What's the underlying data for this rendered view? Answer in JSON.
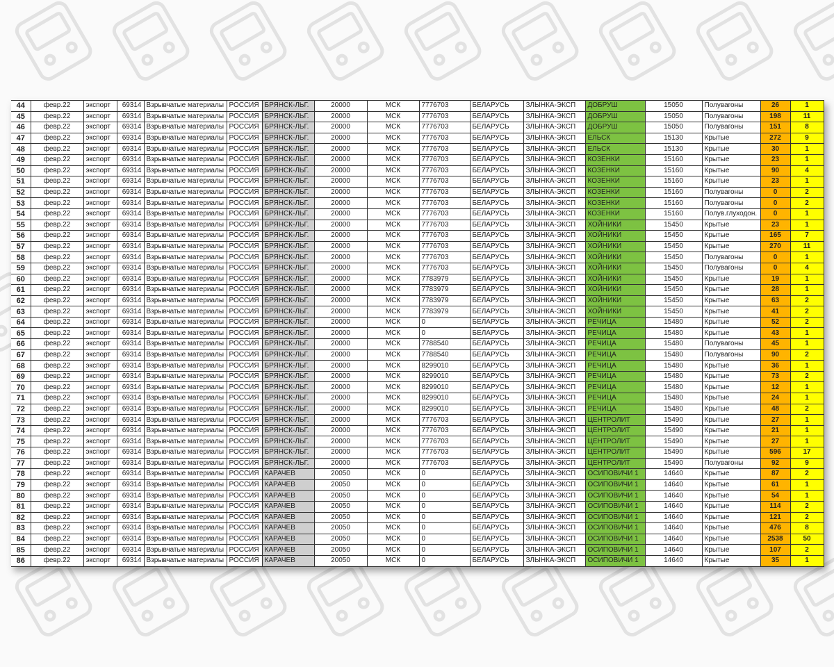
{
  "colors": {
    "station_origin": "#cfcfcf",
    "station_dest": "#7dc242",
    "tons": "#ffb400",
    "wagons": "#ffff00"
  },
  "watermark_icon": "train-icon",
  "rows": [
    [
      "44",
      "февр.22",
      "экспорт",
      "69314",
      "Взрывчатые материалы",
      "РОССИЯ",
      "БРЯНСК-ЛЬГ.",
      "20000",
      "МСК",
      "7776703",
      "БЕЛАРУСЬ",
      "ЗЛЫНКА-ЭКСП",
      "ДОБРУШ",
      "15050",
      "Полувагоны",
      "26",
      "1"
    ],
    [
      "45",
      "февр.22",
      "экспорт",
      "69314",
      "Взрывчатые материалы",
      "РОССИЯ",
      "БРЯНСК-ЛЬГ.",
      "20000",
      "МСК",
      "7776703",
      "БЕЛАРУСЬ",
      "ЗЛЫНКА-ЭКСП",
      "ДОБРУШ",
      "15050",
      "Полувагоны",
      "198",
      "11"
    ],
    [
      "46",
      "февр.22",
      "экспорт",
      "69314",
      "Взрывчатые материалы",
      "РОССИЯ",
      "БРЯНСК-ЛЬГ.",
      "20000",
      "МСК",
      "7776703",
      "БЕЛАРУСЬ",
      "ЗЛЫНКА-ЭКСП",
      "ДОБРУШ",
      "15050",
      "Полувагоны",
      "151",
      "8"
    ],
    [
      "47",
      "февр.22",
      "экспорт",
      "69314",
      "Взрывчатые материалы",
      "РОССИЯ",
      "БРЯНСК-ЛЬГ.",
      "20000",
      "МСК",
      "7776703",
      "БЕЛАРУСЬ",
      "ЗЛЫНКА-ЭКСП",
      "ЕЛЬСК",
      "15130",
      "Крытые",
      "272",
      "9"
    ],
    [
      "48",
      "февр.22",
      "экспорт",
      "69314",
      "Взрывчатые материалы",
      "РОССИЯ",
      "БРЯНСК-ЛЬГ.",
      "20000",
      "МСК",
      "7776703",
      "БЕЛАРУСЬ",
      "ЗЛЫНКА-ЭКСП",
      "ЕЛЬСК",
      "15130",
      "Крытые",
      "30",
      "1"
    ],
    [
      "49",
      "февр.22",
      "экспорт",
      "69314",
      "Взрывчатые материалы",
      "РОССИЯ",
      "БРЯНСК-ЛЬГ.",
      "20000",
      "МСК",
      "7776703",
      "БЕЛАРУСЬ",
      "ЗЛЫНКА-ЭКСП",
      "КОЗЕНКИ",
      "15160",
      "Крытые",
      "23",
      "1"
    ],
    [
      "50",
      "февр.22",
      "экспорт",
      "69314",
      "Взрывчатые материалы",
      "РОССИЯ",
      "БРЯНСК-ЛЬГ.",
      "20000",
      "МСК",
      "7776703",
      "БЕЛАРУСЬ",
      "ЗЛЫНКА-ЭКСП",
      "КОЗЕНКИ",
      "15160",
      "Крытые",
      "90",
      "4"
    ],
    [
      "51",
      "февр.22",
      "экспорт",
      "69314",
      "Взрывчатые материалы",
      "РОССИЯ",
      "БРЯНСК-ЛЬГ.",
      "20000",
      "МСК",
      "7776703",
      "БЕЛАРУСЬ",
      "ЗЛЫНКА-ЭКСП",
      "КОЗЕНКИ",
      "15160",
      "Крытые",
      "23",
      "1"
    ],
    [
      "52",
      "февр.22",
      "экспорт",
      "69314",
      "Взрывчатые материалы",
      "РОССИЯ",
      "БРЯНСК-ЛЬГ.",
      "20000",
      "МСК",
      "7776703",
      "БЕЛАРУСЬ",
      "ЗЛЫНКА-ЭКСП",
      "КОЗЕНКИ",
      "15160",
      "Полувагоны",
      "0",
      "2"
    ],
    [
      "53",
      "февр.22",
      "экспорт",
      "69314",
      "Взрывчатые материалы",
      "РОССИЯ",
      "БРЯНСК-ЛЬГ.",
      "20000",
      "МСК",
      "7776703",
      "БЕЛАРУСЬ",
      "ЗЛЫНКА-ЭКСП",
      "КОЗЕНКИ",
      "15160",
      "Полувагоны",
      "0",
      "2"
    ],
    [
      "54",
      "февр.22",
      "экспорт",
      "69314",
      "Взрывчатые материалы",
      "РОССИЯ",
      "БРЯНСК-ЛЬГ.",
      "20000",
      "МСК",
      "7776703",
      "БЕЛАРУСЬ",
      "ЗЛЫНКА-ЭКСП",
      "КОЗЕНКИ",
      "15160",
      "Полув.глуходон.",
      "0",
      "1"
    ],
    [
      "55",
      "февр.22",
      "экспорт",
      "69314",
      "Взрывчатые материалы",
      "РОССИЯ",
      "БРЯНСК-ЛЬГ.",
      "20000",
      "МСК",
      "7776703",
      "БЕЛАРУСЬ",
      "ЗЛЫНКА-ЭКСП",
      "ХОЙНИКИ",
      "15450",
      "Крытые",
      "23",
      "1"
    ],
    [
      "56",
      "февр.22",
      "экспорт",
      "69314",
      "Взрывчатые материалы",
      "РОССИЯ",
      "БРЯНСК-ЛЬГ.",
      "20000",
      "МСК",
      "7776703",
      "БЕЛАРУСЬ",
      "ЗЛЫНКА-ЭКСП",
      "ХОЙНИКИ",
      "15450",
      "Крытые",
      "165",
      "7"
    ],
    [
      "57",
      "февр.22",
      "экспорт",
      "69314",
      "Взрывчатые материалы",
      "РОССИЯ",
      "БРЯНСК-ЛЬГ.",
      "20000",
      "МСК",
      "7776703",
      "БЕЛАРУСЬ",
      "ЗЛЫНКА-ЭКСП",
      "ХОЙНИКИ",
      "15450",
      "Крытые",
      "270",
      "11"
    ],
    [
      "58",
      "февр.22",
      "экспорт",
      "69314",
      "Взрывчатые материалы",
      "РОССИЯ",
      "БРЯНСК-ЛЬГ.",
      "20000",
      "МСК",
      "7776703",
      "БЕЛАРУСЬ",
      "ЗЛЫНКА-ЭКСП",
      "ХОЙНИКИ",
      "15450",
      "Полувагоны",
      "0",
      "1"
    ],
    [
      "59",
      "февр.22",
      "экспорт",
      "69314",
      "Взрывчатые материалы",
      "РОССИЯ",
      "БРЯНСК-ЛЬГ.",
      "20000",
      "МСК",
      "7776703",
      "БЕЛАРУСЬ",
      "ЗЛЫНКА-ЭКСП",
      "ХОЙНИКИ",
      "15450",
      "Полувагоны",
      "0",
      "4"
    ],
    [
      "60",
      "февр.22",
      "экспорт",
      "69314",
      "Взрывчатые материалы",
      "РОССИЯ",
      "БРЯНСК-ЛЬГ.",
      "20000",
      "МСК",
      "7783979",
      "БЕЛАРУСЬ",
      "ЗЛЫНКА-ЭКСП",
      "ХОЙНИКИ",
      "15450",
      "Крытые",
      "19",
      "1"
    ],
    [
      "61",
      "февр.22",
      "экспорт",
      "69314",
      "Взрывчатые материалы",
      "РОССИЯ",
      "БРЯНСК-ЛЬГ.",
      "20000",
      "МСК",
      "7783979",
      "БЕЛАРУСЬ",
      "ЗЛЫНКА-ЭКСП",
      "ХОЙНИКИ",
      "15450",
      "Крытые",
      "28",
      "1"
    ],
    [
      "62",
      "февр.22",
      "экспорт",
      "69314",
      "Взрывчатые материалы",
      "РОССИЯ",
      "БРЯНСК-ЛЬГ.",
      "20000",
      "МСК",
      "7783979",
      "БЕЛАРУСЬ",
      "ЗЛЫНКА-ЭКСП",
      "ХОЙНИКИ",
      "15450",
      "Крытые",
      "63",
      "2"
    ],
    [
      "63",
      "февр.22",
      "экспорт",
      "69314",
      "Взрывчатые материалы",
      "РОССИЯ",
      "БРЯНСК-ЛЬГ.",
      "20000",
      "МСК",
      "7783979",
      "БЕЛАРУСЬ",
      "ЗЛЫНКА-ЭКСП",
      "ХОЙНИКИ",
      "15450",
      "Крытые",
      "41",
      "2"
    ],
    [
      "64",
      "февр.22",
      "экспорт",
      "69314",
      "Взрывчатые материалы",
      "РОССИЯ",
      "БРЯНСК-ЛЬГ.",
      "20000",
      "МСК",
      "0",
      "БЕЛАРУСЬ",
      "ЗЛЫНКА-ЭКСП",
      "РЕЧИЦА",
      "15480",
      "Крытые",
      "52",
      "2"
    ],
    [
      "65",
      "февр.22",
      "экспорт",
      "69314",
      "Взрывчатые материалы",
      "РОССИЯ",
      "БРЯНСК-ЛЬГ.",
      "20000",
      "МСК",
      "0",
      "БЕЛАРУСЬ",
      "ЗЛЫНКА-ЭКСП",
      "РЕЧИЦА",
      "15480",
      "Крытые",
      "43",
      "1"
    ],
    [
      "66",
      "февр.22",
      "экспорт",
      "69314",
      "Взрывчатые материалы",
      "РОССИЯ",
      "БРЯНСК-ЛЬГ.",
      "20000",
      "МСК",
      "7788540",
      "БЕЛАРУСЬ",
      "ЗЛЫНКА-ЭКСП",
      "РЕЧИЦА",
      "15480",
      "Полувагоны",
      "45",
      "1"
    ],
    [
      "67",
      "февр.22",
      "экспорт",
      "69314",
      "Взрывчатые материалы",
      "РОССИЯ",
      "БРЯНСК-ЛЬГ.",
      "20000",
      "МСК",
      "7788540",
      "БЕЛАРУСЬ",
      "ЗЛЫНКА-ЭКСП",
      "РЕЧИЦА",
      "15480",
      "Полувагоны",
      "90",
      "2"
    ],
    [
      "68",
      "февр.22",
      "экспорт",
      "69314",
      "Взрывчатые материалы",
      "РОССИЯ",
      "БРЯНСК-ЛЬГ.",
      "20000",
      "МСК",
      "8299010",
      "БЕЛАРУСЬ",
      "ЗЛЫНКА-ЭКСП",
      "РЕЧИЦА",
      "15480",
      "Крытые",
      "36",
      "1"
    ],
    [
      "69",
      "февр.22",
      "экспорт",
      "69314",
      "Взрывчатые материалы",
      "РОССИЯ",
      "БРЯНСК-ЛЬГ.",
      "20000",
      "МСК",
      "8299010",
      "БЕЛАРУСЬ",
      "ЗЛЫНКА-ЭКСП",
      "РЕЧИЦА",
      "15480",
      "Крытые",
      "73",
      "2"
    ],
    [
      "70",
      "февр.22",
      "экспорт",
      "69314",
      "Взрывчатые материалы",
      "РОССИЯ",
      "БРЯНСК-ЛЬГ.",
      "20000",
      "МСК",
      "8299010",
      "БЕЛАРУСЬ",
      "ЗЛЫНКА-ЭКСП",
      "РЕЧИЦА",
      "15480",
      "Крытые",
      "12",
      "1"
    ],
    [
      "71",
      "февр.22",
      "экспорт",
      "69314",
      "Взрывчатые материалы",
      "РОССИЯ",
      "БРЯНСК-ЛЬГ.",
      "20000",
      "МСК",
      "8299010",
      "БЕЛАРУСЬ",
      "ЗЛЫНКА-ЭКСП",
      "РЕЧИЦА",
      "15480",
      "Крытые",
      "24",
      "1"
    ],
    [
      "72",
      "февр.22",
      "экспорт",
      "69314",
      "Взрывчатые материалы",
      "РОССИЯ",
      "БРЯНСК-ЛЬГ.",
      "20000",
      "МСК",
      "8299010",
      "БЕЛАРУСЬ",
      "ЗЛЫНКА-ЭКСП",
      "РЕЧИЦА",
      "15480",
      "Крытые",
      "48",
      "2"
    ],
    [
      "73",
      "февр.22",
      "экспорт",
      "69314",
      "Взрывчатые материалы",
      "РОССИЯ",
      "БРЯНСК-ЛЬГ.",
      "20000",
      "МСК",
      "7776703",
      "БЕЛАРУСЬ",
      "ЗЛЫНКА-ЭКСП",
      "ЦЕНТРОЛИТ",
      "15490",
      "Крытые",
      "27",
      "1"
    ],
    [
      "74",
      "февр.22",
      "экспорт",
      "69314",
      "Взрывчатые материалы",
      "РОССИЯ",
      "БРЯНСК-ЛЬГ.",
      "20000",
      "МСК",
      "7776703",
      "БЕЛАРУСЬ",
      "ЗЛЫНКА-ЭКСП",
      "ЦЕНТРОЛИТ",
      "15490",
      "Крытые",
      "21",
      "1"
    ],
    [
      "75",
      "февр.22",
      "экспорт",
      "69314",
      "Взрывчатые материалы",
      "РОССИЯ",
      "БРЯНСК-ЛЬГ.",
      "20000",
      "МСК",
      "7776703",
      "БЕЛАРУСЬ",
      "ЗЛЫНКА-ЭКСП",
      "ЦЕНТРОЛИТ",
      "15490",
      "Крытые",
      "27",
      "1"
    ],
    [
      "76",
      "февр.22",
      "экспорт",
      "69314",
      "Взрывчатые материалы",
      "РОССИЯ",
      "БРЯНСК-ЛЬГ.",
      "20000",
      "МСК",
      "7776703",
      "БЕЛАРУСЬ",
      "ЗЛЫНКА-ЭКСП",
      "ЦЕНТРОЛИТ",
      "15490",
      "Крытые",
      "596",
      "17"
    ],
    [
      "77",
      "февр.22",
      "экспорт",
      "69314",
      "Взрывчатые материалы",
      "РОССИЯ",
      "БРЯНСК-ЛЬГ.",
      "20000",
      "МСК",
      "7776703",
      "БЕЛАРУСЬ",
      "ЗЛЫНКА-ЭКСП",
      "ЦЕНТРОЛИТ",
      "15490",
      "Полувагоны",
      "92",
      "9"
    ],
    [
      "78",
      "февр.22",
      "экспорт",
      "69314",
      "Взрывчатые материалы",
      "РОССИЯ",
      "КАРАЧЕВ",
      "20050",
      "МСК",
      "0",
      "БЕЛАРУСЬ",
      "ЗЛЫНКА-ЭКСП",
      "ОСИПОВИЧИ 1",
      "14640",
      "Крытые",
      "87",
      "2"
    ],
    [
      "79",
      "февр.22",
      "экспорт",
      "69314",
      "Взрывчатые материалы",
      "РОССИЯ",
      "КАРАЧЕВ",
      "20050",
      "МСК",
      "0",
      "БЕЛАРУСЬ",
      "ЗЛЫНКА-ЭКСП",
      "ОСИПОВИЧИ 1",
      "14640",
      "Крытые",
      "61",
      "1"
    ],
    [
      "80",
      "февр.22",
      "экспорт",
      "69314",
      "Взрывчатые материалы",
      "РОССИЯ",
      "КАРАЧЕВ",
      "20050",
      "МСК",
      "0",
      "БЕЛАРУСЬ",
      "ЗЛЫНКА-ЭКСП",
      "ОСИПОВИЧИ 1",
      "14640",
      "Крытые",
      "54",
      "1"
    ],
    [
      "81",
      "февр.22",
      "экспорт",
      "69314",
      "Взрывчатые материалы",
      "РОССИЯ",
      "КАРАЧЕВ",
      "20050",
      "МСК",
      "0",
      "БЕЛАРУСЬ",
      "ЗЛЫНКА-ЭКСП",
      "ОСИПОВИЧИ 1",
      "14640",
      "Крытые",
      "114",
      "2"
    ],
    [
      "82",
      "февр.22",
      "экспорт",
      "69314",
      "Взрывчатые материалы",
      "РОССИЯ",
      "КАРАЧЕВ",
      "20050",
      "МСК",
      "0",
      "БЕЛАРУСЬ",
      "ЗЛЫНКА-ЭКСП",
      "ОСИПОВИЧИ 1",
      "14640",
      "Крытые",
      "121",
      "2"
    ],
    [
      "83",
      "февр.22",
      "экспорт",
      "69314",
      "Взрывчатые материалы",
      "РОССИЯ",
      "КАРАЧЕВ",
      "20050",
      "МСК",
      "0",
      "БЕЛАРУСЬ",
      "ЗЛЫНКА-ЭКСП",
      "ОСИПОВИЧИ 1",
      "14640",
      "Крытые",
      "476",
      "8"
    ],
    [
      "84",
      "февр.22",
      "экспорт",
      "69314",
      "Взрывчатые материалы",
      "РОССИЯ",
      "КАРАЧЕВ",
      "20050",
      "МСК",
      "0",
      "БЕЛАРУСЬ",
      "ЗЛЫНКА-ЭКСП",
      "ОСИПОВИЧИ 1",
      "14640",
      "Крытые",
      "2538",
      "50"
    ],
    [
      "85",
      "февр.22",
      "экспорт",
      "69314",
      "Взрывчатые материалы",
      "РОССИЯ",
      "КАРАЧЕВ",
      "20050",
      "МСК",
      "0",
      "БЕЛАРУСЬ",
      "ЗЛЫНКА-ЭКСП",
      "ОСИПОВИЧИ 1",
      "14640",
      "Крытые",
      "107",
      "2"
    ],
    [
      "86",
      "февр.22",
      "экспорт",
      "69314",
      "Взрывчатые материалы",
      "РОССИЯ",
      "КАРАЧЕВ",
      "20050",
      "МСК",
      "0",
      "БЕЛАРУСЬ",
      "ЗЛЫНКА-ЭКСП",
      "ОСИПОВИЧИ 1",
      "14640",
      "Крытые",
      "35",
      "1"
    ]
  ]
}
